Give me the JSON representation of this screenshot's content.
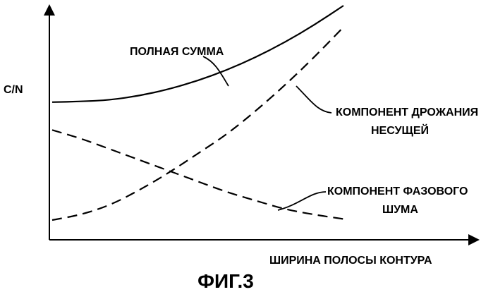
{
  "chart_data": {
    "type": "line",
    "xlabel": "ШИРИНА ПОЛОСЫ КОНТУРА",
    "ylabel": "C/N",
    "caption": "ФИГ.3",
    "grid": false,
    "series": [
      {
        "name": "ПОЛНАЯ СУММА",
        "style": "solid",
        "label_lines": [
          "ПОЛНАЯ СУММА"
        ],
        "x": [
          0.0,
          0.1,
          0.2,
          0.3,
          0.4,
          0.5,
          0.6,
          0.7,
          0.8,
          0.9,
          1.0
        ],
        "y": [
          0.55,
          0.553,
          0.56,
          0.58,
          0.61,
          0.65,
          0.7,
          0.76,
          0.83,
          0.91,
          1.0
        ]
      },
      {
        "name": "КОМПОНЕНТ ДРОЖАНИЯ НЕСУЩЕЙ",
        "style": "dashed",
        "label_lines": [
          "КОМПОНЕНТ ДРОЖАНИЯ",
          "НЕСУЩЕЙ"
        ],
        "x": [
          0.0,
          0.1,
          0.2,
          0.3,
          0.4,
          0.5,
          0.6,
          0.7,
          0.8,
          0.9,
          1.0
        ],
        "y": [
          0.0,
          0.025,
          0.07,
          0.14,
          0.22,
          0.31,
          0.4,
          0.51,
          0.63,
          0.76,
          0.9
        ]
      },
      {
        "name": "КОМПОНЕНТ ФАЗОВОГО ШУМА",
        "style": "dashed",
        "label_lines": [
          "КОМПОНЕНТ ФАЗОВОГО",
          "ШУМА"
        ],
        "x": [
          0.0,
          0.1,
          0.2,
          0.3,
          0.4,
          0.5,
          0.6,
          0.7,
          0.8,
          0.9,
          1.0
        ],
        "y": [
          0.42,
          0.38,
          0.33,
          0.28,
          0.23,
          0.18,
          0.13,
          0.09,
          0.05,
          0.025,
          0.005
        ]
      }
    ]
  }
}
